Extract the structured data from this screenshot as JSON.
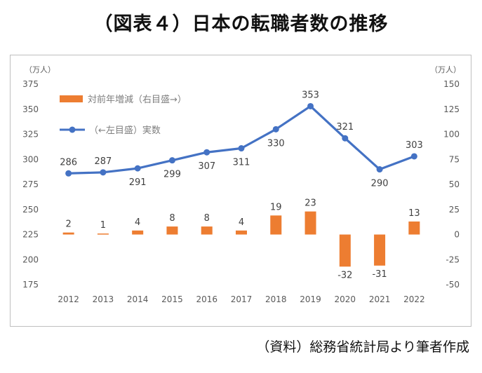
{
  "title": "（図表４）日本の転職者数の推移",
  "source": "（資料）総務省統計局より筆者作成",
  "chart_data": {
    "type": "bar+line",
    "categories": [
      "2012",
      "2013",
      "2014",
      "2015",
      "2016",
      "2017",
      "2018",
      "2019",
      "2020",
      "2021",
      "2022"
    ],
    "y_left": {
      "unit": "（万人）",
      "range": [
        175,
        375
      ],
      "ticks": [
        175,
        200,
        225,
        250,
        275,
        300,
        325,
        350,
        375
      ]
    },
    "y_right": {
      "unit": "（万人）",
      "range": [
        -50,
        150
      ],
      "ticks": [
        -50,
        -25,
        0,
        25,
        50,
        75,
        100,
        125,
        150
      ]
    },
    "series": [
      {
        "name": "対前年増減（右目盛→）",
        "type": "bar",
        "axis": "right",
        "color": "#ED7D31",
        "values": [
          2,
          1,
          4,
          8,
          8,
          4,
          19,
          23,
          -32,
          -31,
          13
        ]
      },
      {
        "name": "（←左目盛）実数",
        "type": "line",
        "axis": "left",
        "color": "#4472C4",
        "values": [
          286,
          287,
          291,
          299,
          307,
          311,
          330,
          353,
          321,
          290,
          303
        ]
      }
    ],
    "grid": false,
    "legend": "top-left"
  }
}
